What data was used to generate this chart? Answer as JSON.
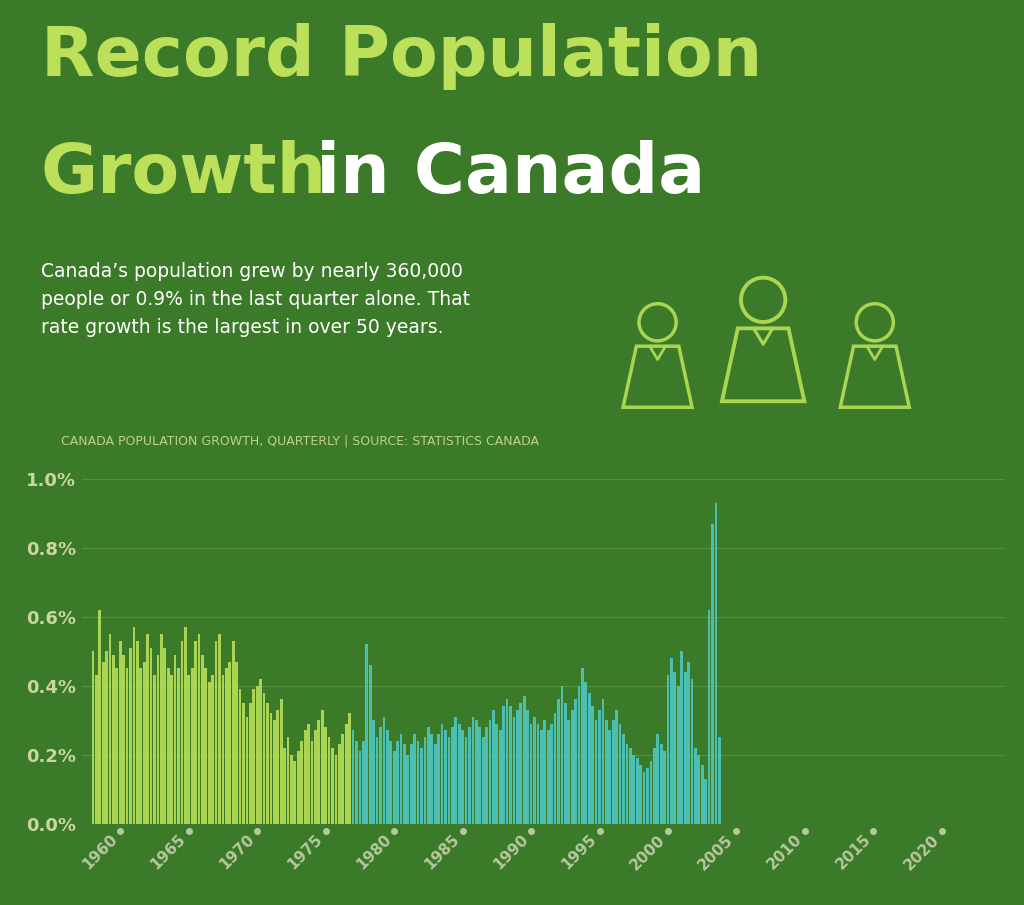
{
  "title_line1": "Record Population",
  "title_line2_part1": "Growth",
  "title_line2_part2": " in Canada",
  "subtitle": "Canada’s population grew by nearly 360,000\npeople or 0.9% in the last quarter alone. That\nrate growth is the largest in over 50 years.",
  "chart_label": "CANADA POPULATION GROWTH, QUARTERLY | SOURCE: STATISTICS CANADA",
  "bg_color": "#3a7a28",
  "bar_color_early": "#aad452",
  "bar_color_late": "#4dbfb0",
  "grid_color": "#5a9940",
  "text_color_white": "#ffffff",
  "text_color_light": "#bde05a",
  "axis_label_color": "#c0d090",
  "ytick_color": "#c8d8a0",
  "xtick_color": "#b8c8a0",
  "icon_color": "#aad452",
  "color_split_year": 1977.0,
  "start_year": 1958.0,
  "quarter_step": 0.25,
  "values": [
    0.5,
    0.43,
    0.62,
    0.47,
    0.5,
    0.55,
    0.49,
    0.45,
    0.53,
    0.49,
    0.45,
    0.51,
    0.57,
    0.53,
    0.45,
    0.47,
    0.55,
    0.51,
    0.43,
    0.49,
    0.55,
    0.51,
    0.45,
    0.43,
    0.49,
    0.45,
    0.53,
    0.57,
    0.43,
    0.45,
    0.53,
    0.55,
    0.49,
    0.45,
    0.41,
    0.43,
    0.53,
    0.55,
    0.43,
    0.45,
    0.47,
    0.53,
    0.47,
    0.39,
    0.35,
    0.31,
    0.35,
    0.39,
    0.4,
    0.42,
    0.38,
    0.35,
    0.32,
    0.3,
    0.33,
    0.36,
    0.22,
    0.25,
    0.2,
    0.18,
    0.21,
    0.24,
    0.27,
    0.29,
    0.24,
    0.27,
    0.3,
    0.33,
    0.28,
    0.25,
    0.22,
    0.2,
    0.23,
    0.26,
    0.29,
    0.32,
    0.27,
    0.24,
    0.21,
    0.24,
    0.52,
    0.46,
    0.3,
    0.25,
    0.28,
    0.31,
    0.27,
    0.24,
    0.21,
    0.24,
    0.26,
    0.23,
    0.2,
    0.23,
    0.26,
    0.24,
    0.22,
    0.25,
    0.28,
    0.26,
    0.23,
    0.26,
    0.29,
    0.27,
    0.25,
    0.28,
    0.31,
    0.29,
    0.27,
    0.25,
    0.28,
    0.31,
    0.3,
    0.28,
    0.25,
    0.28,
    0.3,
    0.33,
    0.29,
    0.27,
    0.34,
    0.36,
    0.34,
    0.31,
    0.33,
    0.35,
    0.37,
    0.33,
    0.29,
    0.31,
    0.29,
    0.27,
    0.3,
    0.27,
    0.29,
    0.32,
    0.36,
    0.4,
    0.35,
    0.3,
    0.33,
    0.36,
    0.4,
    0.45,
    0.41,
    0.38,
    0.34,
    0.3,
    0.33,
    0.36,
    0.3,
    0.27,
    0.3,
    0.33,
    0.29,
    0.26,
    0.23,
    0.22,
    0.2,
    0.19,
    0.17,
    0.15,
    0.16,
    0.18,
    0.22,
    0.26,
    0.23,
    0.21,
    0.43,
    0.48,
    0.44,
    0.4,
    0.5,
    0.44,
    0.47,
    0.42,
    0.22,
    0.2,
    0.17,
    0.13,
    0.62,
    0.87,
    0.93,
    0.25
  ]
}
